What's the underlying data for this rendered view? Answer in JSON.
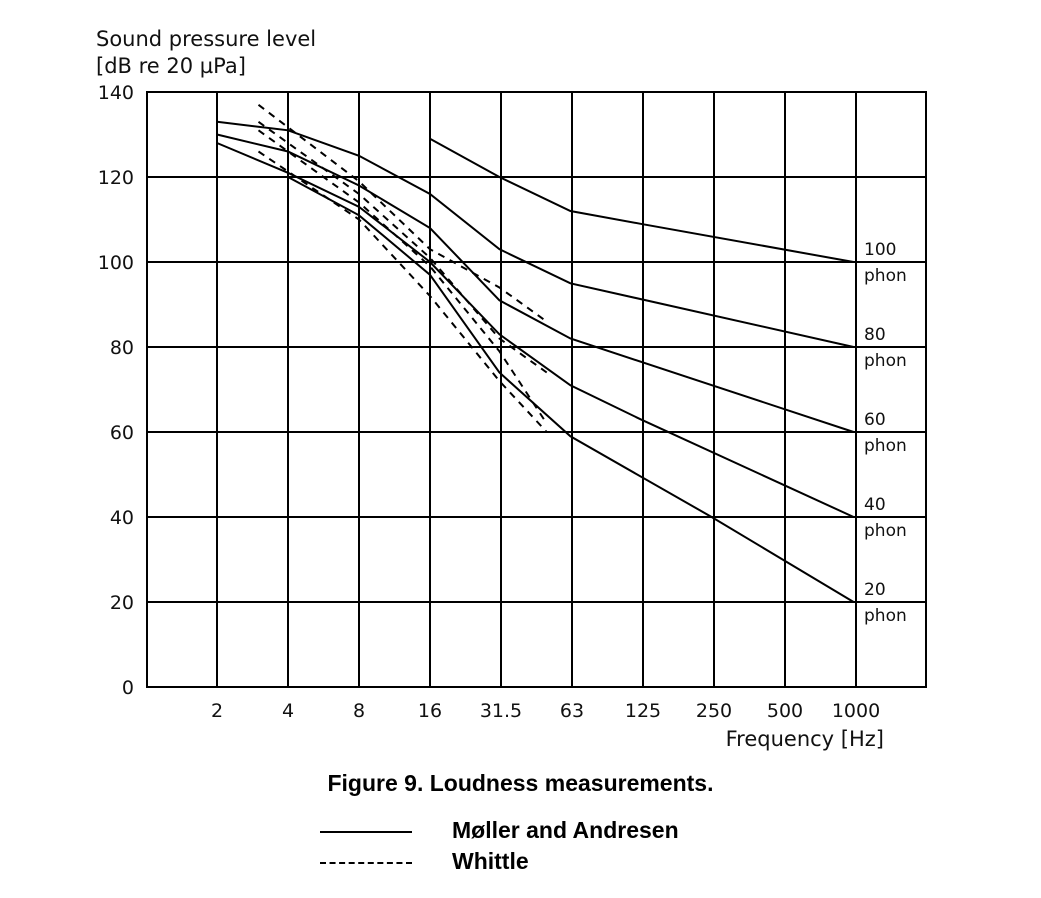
{
  "chart_data": {
    "type": "line",
    "ylabel_line1": "Sound pressure level",
    "ylabel_line2": "[dB re 20 µPa]",
    "xlabel": "Frequency [Hz]",
    "x_ticks": [
      "2",
      "4",
      "8",
      "16",
      "31.5",
      "63",
      "125",
      "250",
      "500",
      "1000"
    ],
    "y_ticks": [
      "0",
      "20",
      "40",
      "60",
      "80",
      "100",
      "120",
      "140"
    ],
    "ylim": [
      0,
      140
    ],
    "x_scale": "log2",
    "grid": true,
    "series": [
      {
        "name": "Møller and Andresen",
        "style": "solid",
        "label_phon": "100",
        "label_unit": "phon",
        "points": [
          [
            16,
            129
          ],
          [
            31.5,
            120
          ],
          [
            63,
            112
          ],
          [
            125,
            109
          ],
          [
            1000,
            100
          ]
        ]
      },
      {
        "name": "Møller and Andresen",
        "style": "solid",
        "label_phon": "80",
        "label_unit": "phon",
        "points": [
          [
            2,
            133
          ],
          [
            4,
            131
          ],
          [
            8,
            125
          ],
          [
            16,
            116
          ],
          [
            31.5,
            103
          ],
          [
            63,
            95
          ],
          [
            1000,
            80
          ]
        ]
      },
      {
        "name": "Møller and Andresen",
        "style": "solid",
        "label_phon": "60",
        "label_unit": "phon",
        "points": [
          [
            2,
            130
          ],
          [
            4,
            126
          ],
          [
            8,
            118
          ],
          [
            16,
            108
          ],
          [
            31.5,
            91
          ],
          [
            63,
            82
          ],
          [
            1000,
            60
          ]
        ]
      },
      {
        "name": "Møller and Andresen",
        "style": "solid",
        "label_phon": "40",
        "label_unit": "phon",
        "points": [
          [
            2,
            128
          ],
          [
            4,
            121
          ],
          [
            8,
            113
          ],
          [
            16,
            100
          ],
          [
            31.5,
            83
          ],
          [
            63,
            71
          ],
          [
            125,
            63
          ],
          [
            1000,
            40
          ]
        ]
      },
      {
        "name": "Møller and Andresen",
        "style": "solid",
        "label_phon": "20",
        "label_unit": "phon",
        "points": [
          [
            4,
            120
          ],
          [
            8,
            111
          ],
          [
            16,
            97
          ],
          [
            31.5,
            74
          ],
          [
            63,
            59
          ],
          [
            250,
            40
          ],
          [
            1000,
            20
          ]
        ]
      },
      {
        "name": "Whittle",
        "style": "dashed",
        "points": [
          [
            3,
            137
          ],
          [
            8,
            119
          ],
          [
            16,
            103
          ],
          [
            31.5,
            94
          ],
          [
            50,
            86
          ]
        ]
      },
      {
        "name": "Whittle",
        "style": "dashed",
        "points": [
          [
            3,
            133
          ],
          [
            8,
            116
          ],
          [
            16,
            101
          ],
          [
            31.5,
            82
          ],
          [
            50,
            74
          ]
        ]
      },
      {
        "name": "Whittle",
        "style": "dashed",
        "points": [
          [
            3,
            131
          ],
          [
            8,
            114
          ],
          [
            16,
            99
          ],
          [
            31.5,
            79
          ],
          [
            50,
            62
          ]
        ]
      },
      {
        "name": "Whittle",
        "style": "dashed",
        "points": [
          [
            3,
            126
          ],
          [
            8,
            110
          ],
          [
            16,
            92
          ],
          [
            31.5,
            72
          ],
          [
            50,
            60
          ]
        ]
      }
    ]
  },
  "caption": "Figure 9. Loudness measurements.",
  "legend": [
    {
      "label": "Møller and Andresen",
      "style": "solid"
    },
    {
      "label": "Whittle",
      "style": "dashed"
    }
  ]
}
